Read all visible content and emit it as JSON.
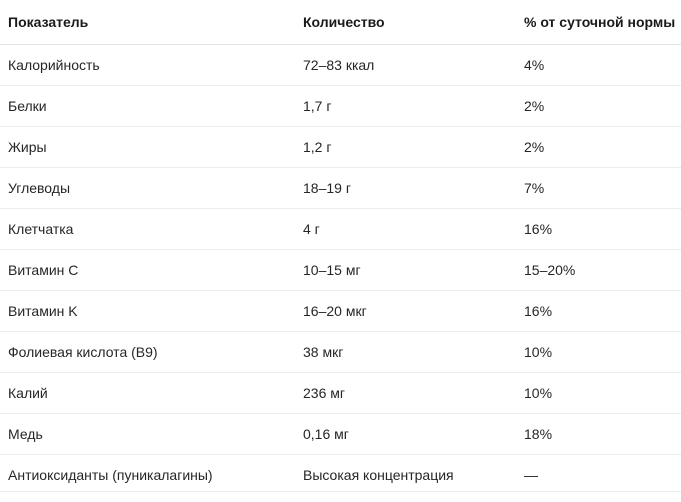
{
  "table": {
    "headers": [
      "Показатель",
      "Количество",
      "% от суточной нормы"
    ],
    "rows": [
      [
        "Калорийность",
        "72–83 ккал",
        "4%"
      ],
      [
        "Белки",
        "1,7 г",
        "2%"
      ],
      [
        "Жиры",
        "1,2 г",
        "2%"
      ],
      [
        "Углеводы",
        "18–19 г",
        "7%"
      ],
      [
        "Клетчатка",
        "4 г",
        "16%"
      ],
      [
        "Витамин C",
        "10–15 мг",
        "15–20%"
      ],
      [
        "Витамин K",
        "16–20 мкг",
        "16%"
      ],
      [
        "Фолиевая кислота (B9)",
        "38 мкг",
        "10%"
      ],
      [
        "Калий",
        "236 мг",
        "10%"
      ],
      [
        "Медь",
        "0,16 мг",
        "18%"
      ],
      [
        "Антиоксиданты (пуникалагины)",
        "Высокая концентрация",
        "—"
      ]
    ]
  }
}
